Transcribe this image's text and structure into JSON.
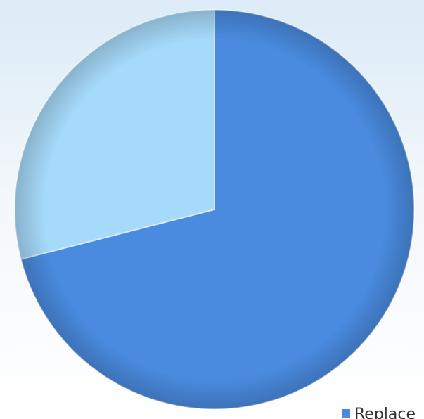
{
  "chart_data": {
    "type": "pie",
    "categories": [
      "Replace",
      null
    ],
    "values": [
      71,
      29
    ],
    "colors": [
      "#4a8be0",
      "#a6dafa"
    ],
    "legend": "bottom-right"
  }
}
